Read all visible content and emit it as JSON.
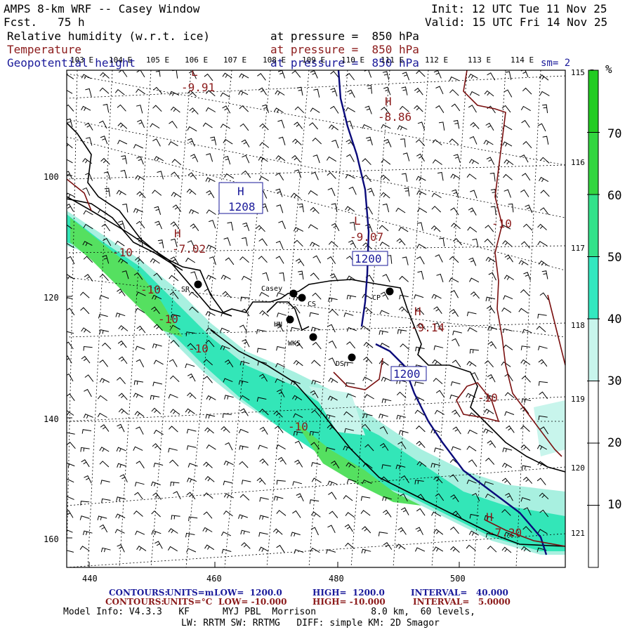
{
  "header": {
    "title": "AMPS 8-km WRF -- Casey Window",
    "forecast": "Fcst.   75 h",
    "init": "Init: 12 UTC Tue 11 Nov 25",
    "valid": "Valid: 15 UTC Fri 14 Nov 25",
    "field1_name": "Relative humidity (w.r.t. ice)",
    "field1_level": "at pressure =  850 hPa",
    "field2_name": "Temperature",
    "field2_level": "at pressure =  850 hPa",
    "field3_name": "Geopotential height",
    "field3_level": "at pressure =  850 hPa",
    "smoothing": "sm= 2"
  },
  "map": {
    "top_lon_labels": [
      "103 E",
      "104 E",
      "105 E",
      "106 E",
      "107 E",
      "108 E",
      "109 E",
      "110 E",
      "111 E",
      "112 E",
      "113 E",
      "114 E"
    ],
    "right_lon_labels": [
      "115 E",
      "116 E",
      "117 E",
      "118 E",
      "119 E",
      "120 E",
      "121 E"
    ],
    "x_ticks": [
      "440",
      "460",
      "480",
      "500"
    ],
    "y_ticks": [
      "100",
      "120",
      "140",
      "160"
    ],
    "stations": [
      "SR",
      "Casey",
      "CS",
      "HN",
      "WKS",
      "DS",
      "CP"
    ],
    "pressure_centers": [
      {
        "type": "L",
        "value": "-9.91"
      },
      {
        "type": "H",
        "value": "-8.86"
      },
      {
        "type": "H",
        "value": "-7.02"
      },
      {
        "type": "L",
        "value": "-9.07"
      },
      {
        "type": "H",
        "value": "-9.14"
      },
      {
        "type": "H",
        "value": "-7.20"
      },
      {
        "type": "H",
        "value": "1208"
      }
    ],
    "temperature_contour_labels": [
      "-10",
      "-10",
      "-10",
      "-10",
      "-10",
      "-10",
      "-10"
    ],
    "height_contour_labels": [
      "1200",
      "1200"
    ]
  },
  "colorbar": {
    "unit": "%",
    "labels": [
      "70",
      "60",
      "50",
      "40",
      "30",
      "20",
      "10"
    ],
    "colors": [
      "#ffffff",
      "#ffffff",
      "#ffffff",
      "#c8f5ec",
      "#33e8c0",
      "#33e28a",
      "#33d640",
      "#22cc22"
    ]
  },
  "footer": {
    "line1_label": "CONTOURS:",
    "line1_units": "UNITS=m",
    "line1_low": "LOW=  1200.0",
    "line1_high": "HIGH=  1200.0",
    "line1_interval": "INTERVAL=   40.000",
    "line2_label": "CONTOURS:",
    "line2_units": "UNITS=°C",
    "line2_low": "LOW= -10.000",
    "line2_high": "HIGH= -10.000",
    "line2_interval": "INTERVAL=   5.0000",
    "line3": "Model Info: V4.3.3   KF      MYJ PBL  Morrison          8.0 km,  60 levels,",
    "line4": "LW: RRTM SW: RRTMG   DIFF: simple KM: 2D Smagor"
  }
}
